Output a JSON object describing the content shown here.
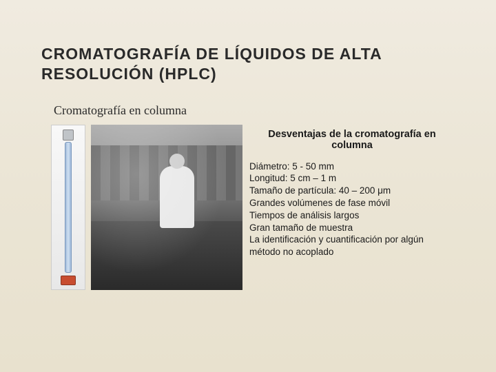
{
  "title": "CROMATOGRAFÍA DE LÍQUIDOS DE ALTA RESOLUCIÓN (HPLC)",
  "subtitle": "Cromatografía en columna",
  "disadvantages": {
    "heading": "Desventajas de la cromatografía en columna",
    "items": [
      "Diámetro:  5 - 50 mm",
      "Longitud:  5 cm – 1 m",
      "Tamaño de partícula: 40 – 200 μm",
      "Grandes volúmenes  de fase móvil",
      "Tiempos de análisis largos",
      "Gran tamaño de muestra",
      "La identificación y cuantificación por algún método no acoplado"
    ]
  },
  "images": {
    "column_alt": "glass-chromatography-column",
    "lab_alt": "vintage-laboratory-photo"
  },
  "colors": {
    "bg_top": "#f0ebe0",
    "bg_bottom": "#e8e1ce",
    "text": "#2a2a2a",
    "column_glass": "#9fb8d8",
    "valve": "#c84d30"
  }
}
